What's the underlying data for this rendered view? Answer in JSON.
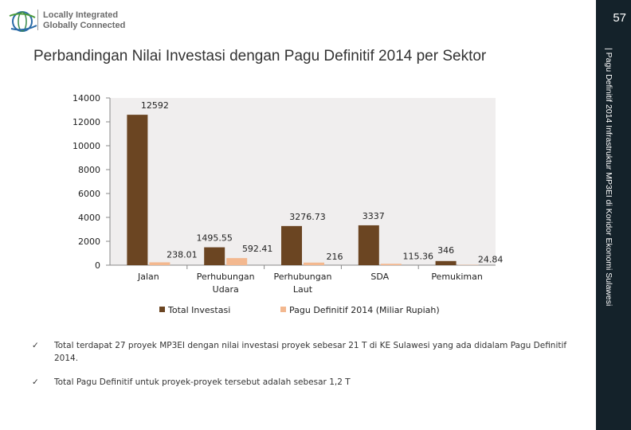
{
  "header": {
    "logo_line1": "Locally Integrated",
    "logo_line2": "Globally Connected",
    "page_number": "57",
    "side_text": "| Pagu Definitif 2014 Infrastruktur MP3EI di Koridor Ekonomi Sulawesi"
  },
  "page_title": "Perbandingan Nilai Investasi dengan Pagu Definitif 2014 per Sektor",
  "chart_data": {
    "type": "bar",
    "title": "",
    "categories": [
      "Jalan",
      "Perhubungan Udara",
      "Perhubungan Laut",
      "SDA",
      "Pemukiman"
    ],
    "category_lines": [
      [
        "Jalan"
      ],
      [
        "Perhubungan",
        "Udara"
      ],
      [
        "Perhubungan",
        "Laut"
      ],
      [
        "SDA"
      ],
      [
        "Pemukiman"
      ]
    ],
    "series": [
      {
        "name": "Total Investasi",
        "values": [
          12592,
          1495.55,
          3276.73,
          3337,
          346
        ],
        "labels": [
          "12592",
          "1495.55",
          "3276.73",
          "3337",
          "346"
        ],
        "color": "#6b4522"
      },
      {
        "name": "Pagu Definitif 2014 (Miliar Rupiah)",
        "values": [
          238.01,
          592.41,
          216,
          115.36,
          24.84
        ],
        "labels": [
          "238.01",
          "592.41",
          "216",
          "115.36",
          "24.84"
        ],
        "color": "#f3b88f"
      }
    ],
    "ylim": [
      0,
      14000
    ],
    "yticks": [
      0,
      2000,
      4000,
      6000,
      8000,
      10000,
      12000,
      14000
    ],
    "legend_position": "bottom",
    "grid": false
  },
  "bullets": [
    {
      "check": "✓",
      "text": "Total terdapat 27 proyek MP3EI dengan nilai investasi proyek sebesar 21 T di KE Sulawesi yang ada didalam Pagu Definitif  2014."
    },
    {
      "check": "✓",
      "text": "Total Pagu Definitif untuk proyek-proyek tersebut adalah sebesar 1,2 T"
    }
  ]
}
